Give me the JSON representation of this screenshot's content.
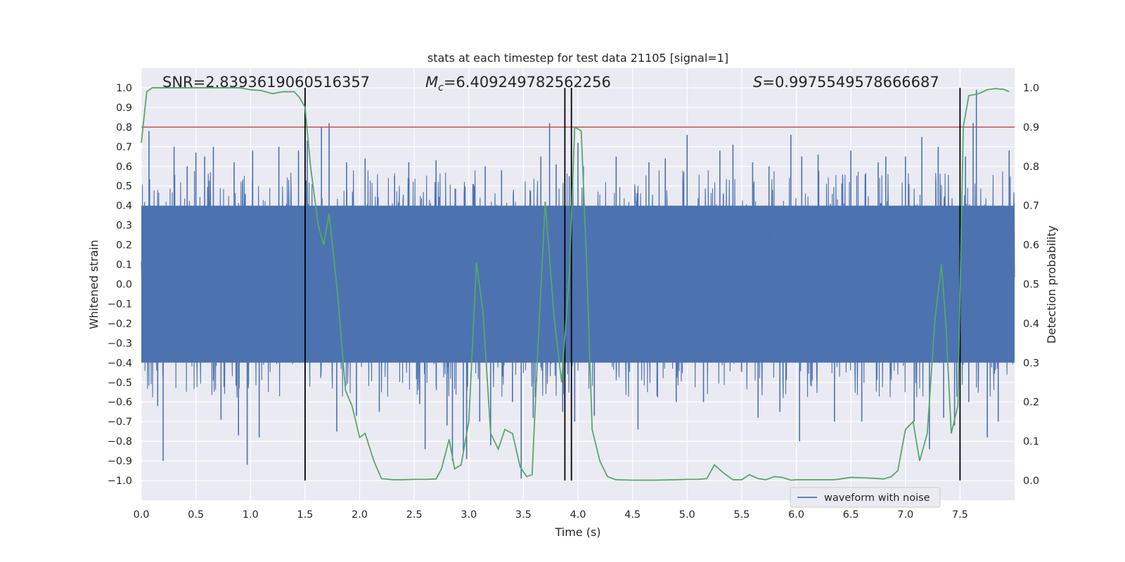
{
  "chart_data": {
    "type": "line",
    "title": "stats at each timestep for test data 21105 [signal=1]",
    "xlabel": "Time (s)",
    "ylabel": "Whitened strain",
    "y2label": "Detection probability",
    "xlim": [
      0,
      8
    ],
    "ylim": [
      -1.1,
      1.1
    ],
    "y2lim": [
      -0.05,
      1.05
    ],
    "grid": true,
    "legend": {
      "placement": "lower-right",
      "entries": [
        "waveform with noise"
      ]
    },
    "x_ticks": [
      "0.0",
      "0.5",
      "1.0",
      "1.5",
      "2.0",
      "2.5",
      "3.0",
      "3.5",
      "4.0",
      "4.5",
      "5.0",
      "5.5",
      "6.0",
      "6.5",
      "7.0",
      "7.5"
    ],
    "y_ticks": [
      "1.0",
      "0.9",
      "0.8",
      "0.7",
      "0.6",
      "0.5",
      "0.4",
      "0.3",
      "0.2",
      "0.1",
      "0.0",
      "−0.1",
      "−0.2",
      "−0.3",
      "−0.4",
      "−0.5",
      "−0.6",
      "−0.7",
      "−0.8",
      "−0.9",
      "−1.0"
    ],
    "y_tick_values": [
      1.0,
      0.9,
      0.8,
      0.7,
      0.6,
      0.5,
      0.4,
      0.3,
      0.2,
      0.1,
      0.0,
      -0.1,
      -0.2,
      -0.3,
      -0.4,
      -0.5,
      -0.6,
      -0.7,
      -0.8,
      -0.9,
      -1.0
    ],
    "y2_ticks": [
      "1.0",
      "0.9",
      "0.8",
      "0.7",
      "0.6",
      "0.5",
      "0.4",
      "0.3",
      "0.2",
      "0.1",
      "0.0"
    ],
    "y2_tick_values": [
      1.0,
      0.9,
      0.8,
      0.7,
      0.6,
      0.5,
      0.4,
      0.3,
      0.2,
      0.1,
      0.0
    ],
    "annotations": {
      "snr": "SNR=2.8393619060516357",
      "mc_symbol": "M",
      "mc_subscript": "c",
      "mc_value": "=6.409249782562256",
      "s_symbol": "S",
      "s_value": "=0.9975549578666687"
    },
    "threshold_line": {
      "axis": "right",
      "value": 0.9,
      "color": "#c44e52"
    },
    "vertical_lines": [
      1.5,
      3.88,
      3.94,
      7.5
    ],
    "waveform_series": {
      "name": "waveform with noise",
      "color": "#4c72b0",
      "core_amplitude": 0.4,
      "sample_rate": 300,
      "peaks": [
        [
          0.07,
          0.78
        ],
        [
          0.15,
          -0.62
        ],
        [
          0.2,
          -0.9
        ],
        [
          0.3,
          0.7
        ],
        [
          0.42,
          0.6
        ],
        [
          0.5,
          0.67
        ],
        [
          0.58,
          0.65
        ],
        [
          0.66,
          0.7
        ],
        [
          0.73,
          -0.69
        ],
        [
          0.85,
          0.62
        ],
        [
          0.89,
          -0.77
        ],
        [
          0.97,
          -0.92
        ],
        [
          1.02,
          0.68
        ],
        [
          1.08,
          -0.78
        ],
        [
          1.26,
          0.7
        ],
        [
          1.44,
          0.68
        ],
        [
          1.52,
          0.73
        ],
        [
          1.65,
          0.8
        ],
        [
          1.72,
          0.82
        ],
        [
          1.79,
          -0.75
        ],
        [
          1.88,
          0.62
        ],
        [
          1.97,
          -0.67
        ],
        [
          2.05,
          0.64
        ],
        [
          2.18,
          -0.65
        ],
        [
          2.32,
          0.55
        ],
        [
          2.45,
          0.62
        ],
        [
          2.55,
          -0.61
        ],
        [
          2.6,
          -0.84
        ],
        [
          2.7,
          0.63
        ],
        [
          2.8,
          -0.72
        ],
        [
          2.85,
          -0.9
        ],
        [
          2.95,
          -0.85
        ],
        [
          2.98,
          -0.89
        ],
        [
          3.05,
          0.5
        ],
        [
          3.1,
          -0.7
        ],
        [
          3.15,
          0.6
        ],
        [
          3.2,
          -0.82
        ],
        [
          3.3,
          0.58
        ],
        [
          3.4,
          -0.6
        ],
        [
          3.48,
          -0.99
        ],
        [
          3.55,
          0.4
        ],
        [
          3.59,
          -0.68
        ],
        [
          3.66,
          0.65
        ],
        [
          3.74,
          0.82
        ],
        [
          3.8,
          0.61
        ],
        [
          3.86,
          -0.65
        ],
        [
          3.92,
          0.55
        ],
        [
          3.97,
          -0.7
        ],
        [
          4.0,
          0.72
        ],
        [
          4.05,
          0.6
        ],
        [
          4.15,
          -0.67
        ],
        [
          4.35,
          0.65
        ],
        [
          4.55,
          -0.74
        ],
        [
          4.65,
          0.62
        ],
        [
          4.8,
          0.64
        ],
        [
          4.9,
          -0.6
        ],
        [
          5.0,
          0.76
        ],
        [
          5.15,
          -0.6
        ],
        [
          5.3,
          0.68
        ],
        [
          5.42,
          0.71
        ],
        [
          5.6,
          0.62
        ],
        [
          5.65,
          -0.68
        ],
        [
          5.75,
          0.6
        ],
        [
          5.85,
          -0.65
        ],
        [
          5.95,
          0.76
        ],
        [
          6.03,
          -0.8
        ],
        [
          6.05,
          0.65
        ],
        [
          6.2,
          0.66
        ],
        [
          6.35,
          -0.7
        ],
        [
          6.5,
          0.68
        ],
        [
          6.6,
          -0.7
        ],
        [
          6.75,
          0.62
        ],
        [
          6.82,
          0.65
        ],
        [
          7.0,
          0.65
        ],
        [
          7.08,
          -0.7
        ],
        [
          7.15,
          0.75
        ],
        [
          7.22,
          -0.84
        ],
        [
          7.3,
          0.7
        ],
        [
          7.35,
          -0.68
        ],
        [
          7.45,
          -0.72
        ],
        [
          7.55,
          0.65
        ],
        [
          7.58,
          -0.6
        ],
        [
          7.62,
          0.82
        ],
        [
          7.65,
          0.99
        ],
        [
          7.75,
          -0.78
        ],
        [
          7.85,
          -0.7
        ],
        [
          7.95,
          0.68
        ]
      ]
    },
    "probability_series": {
      "name": "",
      "color": "#55a868",
      "x": [
        0.0,
        0.05,
        0.1,
        0.2,
        0.3,
        0.4,
        0.5,
        0.6,
        0.7,
        0.8,
        0.9,
        1.0,
        1.1,
        1.2,
        1.3,
        1.4,
        1.45,
        1.5,
        1.55,
        1.62,
        1.67,
        1.72,
        1.8,
        1.87,
        1.93,
        2.0,
        2.05,
        2.13,
        2.2,
        2.3,
        2.4,
        2.5,
        2.6,
        2.7,
        2.75,
        2.82,
        2.87,
        2.93,
        3.0,
        3.07,
        3.13,
        3.2,
        3.27,
        3.33,
        3.4,
        3.47,
        3.53,
        3.58,
        3.63,
        3.7,
        3.78,
        3.85,
        3.92,
        3.97,
        4.03,
        4.08,
        4.13,
        4.2,
        4.27,
        4.35,
        4.5,
        4.7,
        4.9,
        5.0,
        5.1,
        5.18,
        5.25,
        5.33,
        5.42,
        5.5,
        5.57,
        5.65,
        5.72,
        5.8,
        5.87,
        5.95,
        6.0,
        6.2,
        6.35,
        6.5,
        6.6,
        6.7,
        6.8,
        6.87,
        6.93,
        7.0,
        7.07,
        7.13,
        7.2,
        7.27,
        7.33,
        7.37,
        7.42,
        7.48,
        7.53,
        7.58,
        7.67,
        7.75,
        7.82,
        7.9,
        7.95
      ],
      "y": [
        0.86,
        0.99,
        1.0,
        1.0,
        1.0,
        1.0,
        1.0,
        1.0,
        1.0,
        1.0,
        1.0,
        0.995,
        0.993,
        0.985,
        0.99,
        0.99,
        0.975,
        0.95,
        0.8,
        0.65,
        0.6,
        0.68,
        0.47,
        0.23,
        0.19,
        0.11,
        0.12,
        0.05,
        0.005,
        0.002,
        0.002,
        0.003,
        0.003,
        0.004,
        0.03,
        0.105,
        0.03,
        0.04,
        0.15,
        0.555,
        0.43,
        0.12,
        0.08,
        0.13,
        0.12,
        0.035,
        0.01,
        0.015,
        0.32,
        0.71,
        0.42,
        0.25,
        0.52,
        0.9,
        0.89,
        0.55,
        0.13,
        0.05,
        0.01,
        0.002,
        0.001,
        0.001,
        0.002,
        0.003,
        0.003,
        0.005,
        0.04,
        0.02,
        0.002,
        0.002,
        0.015,
        0.005,
        0.002,
        0.01,
        0.008,
        0.001,
        0.002,
        0.002,
        0.002,
        0.008,
        0.007,
        0.006,
        0.004,
        0.01,
        0.025,
        0.13,
        0.15,
        0.05,
        0.12,
        0.41,
        0.55,
        0.4,
        0.12,
        0.19,
        0.9,
        0.98,
        0.985,
        0.995,
        0.998,
        0.996,
        0.99
      ]
    }
  }
}
